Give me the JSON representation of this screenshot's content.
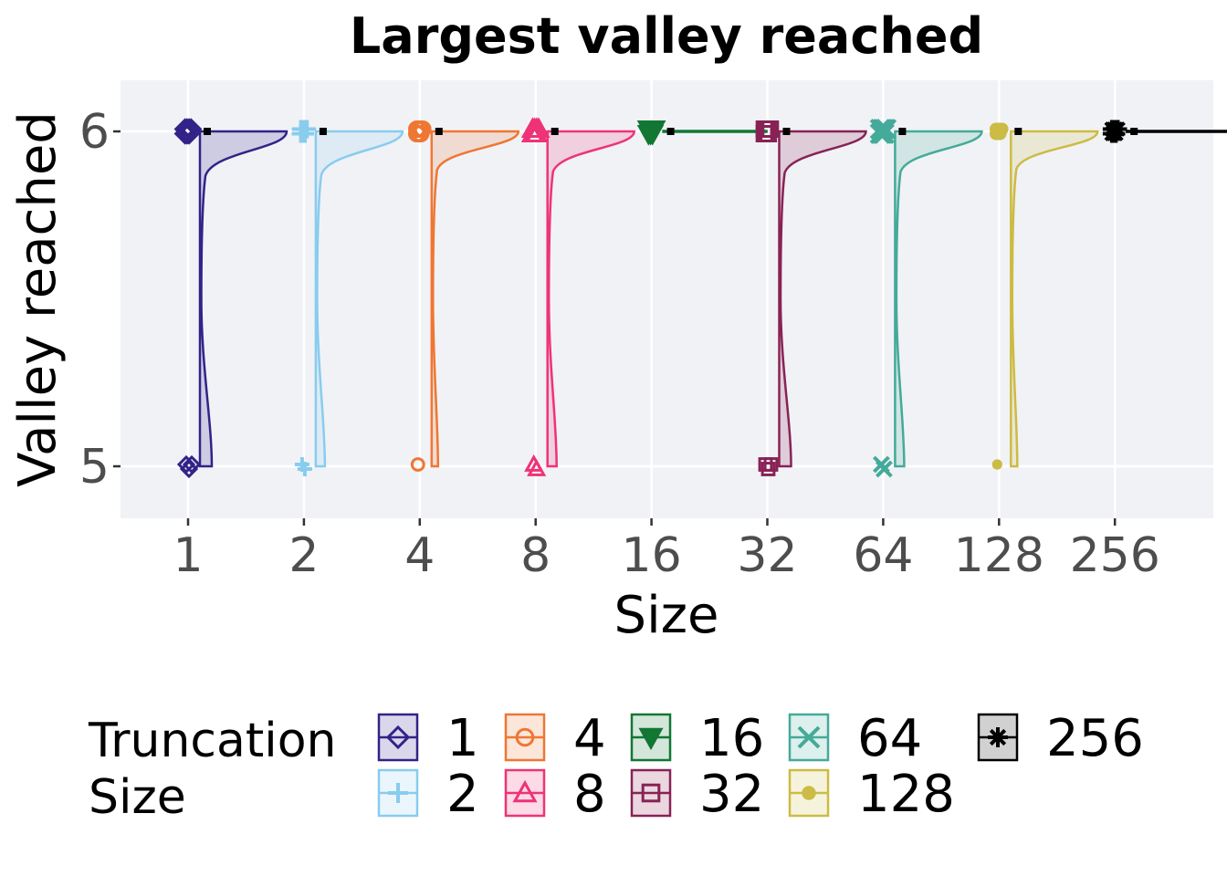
{
  "chart_data": {
    "type": "raincloud",
    "title": "Largest valley reached",
    "xlabel": "Size",
    "ylabel": "Valley reached",
    "categories": [
      "1",
      "2",
      "4",
      "8",
      "16",
      "32",
      "64",
      "128",
      "256"
    ],
    "y_ticks": [
      5,
      6
    ],
    "ylim": [
      4.85,
      6.15
    ],
    "grid": true,
    "legend": {
      "title_lines": [
        "Truncation",
        "Size"
      ],
      "position": "bottom",
      "entries": [
        "1",
        "2",
        "4",
        "8",
        "16",
        "32",
        "64",
        "128",
        "256"
      ]
    },
    "series": [
      {
        "name": "1",
        "color": "#332288",
        "marker": "diamond",
        "fraction_at_6": 0.92,
        "outliers_at_5": 3,
        "mean": 5.97
      },
      {
        "name": "2",
        "color": "#88CCEE",
        "marker": "plus",
        "fraction_at_6": 0.93,
        "outliers_at_5": 2,
        "mean": 5.98
      },
      {
        "name": "4",
        "color": "#EE7733",
        "marker": "circle-open",
        "fraction_at_6": 0.98,
        "outliers_at_5": 1,
        "mean": 5.99
      },
      {
        "name": "8",
        "color": "#EE3377",
        "marker": "triangle",
        "fraction_at_6": 0.96,
        "outliers_at_5": 2,
        "mean": 5.98
      },
      {
        "name": "16",
        "color": "#117733",
        "marker": "triangle-down",
        "fraction_at_6": 1.0,
        "outliers_at_5": 0,
        "mean": 6.0
      },
      {
        "name": "32",
        "color": "#882255",
        "marker": "square-open",
        "fraction_at_6": 0.95,
        "outliers_at_5": 3,
        "mean": 5.97
      },
      {
        "name": "64",
        "color": "#44AA99",
        "marker": "x",
        "fraction_at_6": 0.96,
        "outliers_at_5": 2,
        "mean": 5.98
      },
      {
        "name": "128",
        "color": "#CCBB44",
        "marker": "circle-filled",
        "fraction_at_6": 0.99,
        "outliers_at_5": 1,
        "mean": 5.99
      },
      {
        "name": "256",
        "color": "#000000",
        "marker": "asterisk",
        "fraction_at_6": 1.0,
        "outliers_at_5": 0,
        "mean": 6.0
      }
    ]
  }
}
